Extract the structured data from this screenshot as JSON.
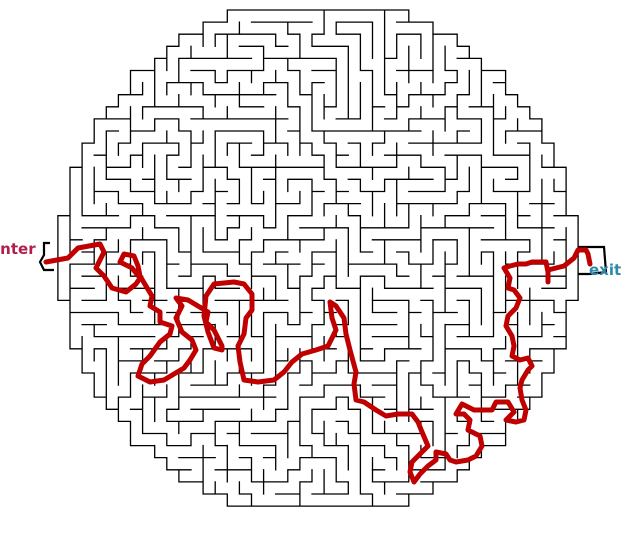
{
  "labels": {
    "enter": "enter",
    "exit": "exit"
  },
  "colors": {
    "background": "#ffffff",
    "walls": "#000000",
    "solution_path": "#c00000",
    "enter_label": "#b0204a",
    "exit_label": "#2a8aa8"
  },
  "maze": {
    "shape": "circle",
    "solution_shown": true
  }
}
